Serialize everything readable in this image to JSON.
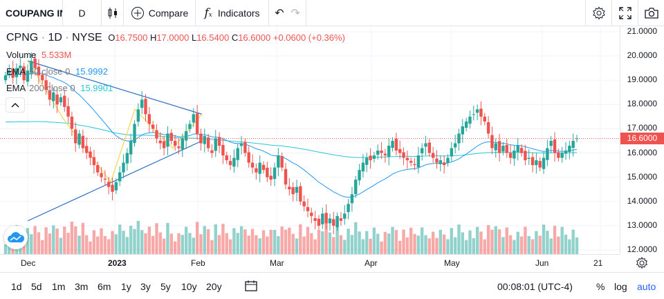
{
  "toolbar": {
    "symbol": "COUPANG INC",
    "interval": "D",
    "compare_label": "Compare",
    "indicators_label": "Indicators"
  },
  "legend": {
    "symbol": "CPNG",
    "interval": "1D",
    "exchange": "NYSE",
    "o_label": "O",
    "o_value": "16.7500",
    "h_label": "H",
    "h_value": "17.0000",
    "l_label": "L",
    "l_value": "16.5400",
    "c_label": "C",
    "c_value": "16.6000",
    "change": "+0.0600 (+0.36%)",
    "volume_label": "Volume",
    "volume_value": "5.533M",
    "ema50_label": "EMA",
    "ema50_params": "50 close 0",
    "ema50_value": "15.9992",
    "ema200_label": "EMA",
    "ema200_params": "200 close 0",
    "ema200_value": "15.9901"
  },
  "colors": {
    "up": "#26a69a",
    "down": "#ef5350",
    "ema50": "#2196f3",
    "ema200": "#26c6da",
    "accent": "#2962ff"
  },
  "chart_data": {
    "type": "candlestick",
    "y_ticks": [
      "21.0000",
      "20.0000",
      "19.0000",
      "18.0000",
      "17.0000",
      "16.0000",
      "15.0000",
      "14.0000",
      "13.0000",
      "12.0000"
    ],
    "x_ticks": [
      "Dec",
      "2023",
      "Feb",
      "Mar",
      "Apr",
      "May",
      "Jun",
      "21"
    ],
    "ylim": [
      12,
      21
    ],
    "last_price": "16.6000",
    "closes": [
      19.2,
      19.4,
      19.1,
      19.5,
      19.6,
      19.0,
      19.4,
      19.8,
      19.5,
      19.2,
      19.0,
      18.6,
      18.2,
      18.5,
      18.0,
      18.3,
      17.9,
      17.5,
      17.0,
      16.4,
      16.8,
      16.2,
      16.0,
      15.8,
      15.5,
      15.2,
      15.0,
      14.9,
      14.6,
      14.4,
      14.8,
      15.2,
      15.6,
      16.0,
      16.5,
      17.2,
      17.8,
      18.2,
      17.6,
      17.2,
      17.0,
      16.6,
      16.4,
      16.2,
      16.8,
      16.5,
      16.3,
      16.2,
      16.6,
      16.9,
      17.2,
      17.6,
      16.8,
      16.4,
      16.7,
      16.2,
      16.0,
      16.6,
      16.3,
      15.9,
      15.7,
      15.5,
      15.8,
      16.2,
      16.4,
      16.0,
      15.6,
      15.4,
      15.2,
      15.6,
      15.3,
      15.0,
      14.9,
      15.4,
      15.9,
      15.4,
      14.7,
      14.5,
      14.3,
      14.6,
      14.0,
      13.8,
      13.6,
      13.4,
      13.2,
      13.0,
      13.5,
      13.1,
      13.3,
      13.0,
      13.4,
      13.2,
      13.5,
      13.9,
      14.3,
      14.9,
      15.3,
      15.6,
      15.8,
      15.7,
      15.9,
      16.1,
      16.0,
      15.9,
      16.3,
      16.5,
      16.1,
      16.0,
      15.8,
      15.7,
      15.6,
      15.5,
      15.9,
      16.2,
      16.4,
      16.0,
      15.8,
      15.6,
      15.7,
      15.5,
      15.8,
      16.2,
      16.4,
      16.8,
      17.1,
      17.3,
      17.5,
      17.6,
      17.8,
      17.5,
      17.3,
      16.8,
      16.2,
      16.4,
      16.0,
      16.3,
      16.0,
      15.8,
      16.1,
      16.3,
      16.0,
      15.7,
      15.8,
      15.5,
      15.7,
      15.4,
      15.8,
      16.2,
      16.5,
      16.0,
      15.8,
      16.0,
      16.1,
      16.3,
      16.5,
      16.6
    ],
    "series": [
      {
        "name": "EMA 50 close 0",
        "last": 15.9992
      },
      {
        "name": "EMA 200 close 0",
        "last": 15.9901
      }
    ]
  },
  "timeframes": [
    "1d",
    "5d",
    "1m",
    "3m",
    "6m",
    "1y",
    "3y",
    "5y",
    "10y",
    "20y"
  ],
  "footer": {
    "clock": "00:08:01 (UTC-4)",
    "percent_label": "%",
    "log_label": "log",
    "auto_label": "auto"
  }
}
